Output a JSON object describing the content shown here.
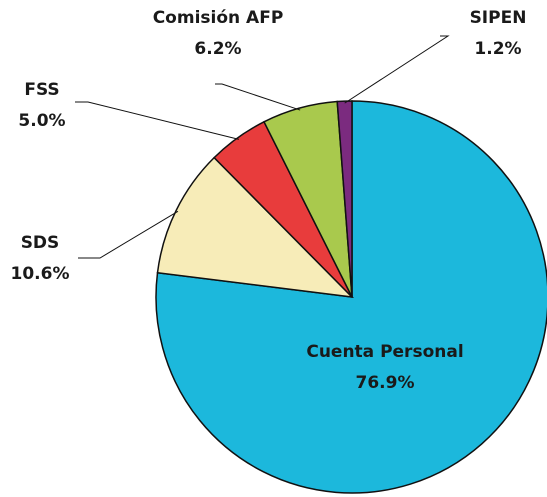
{
  "chart_data": {
    "type": "pie",
    "categories": [
      "Cuenta Personal",
      "SDS",
      "FSS",
      "Comisión AFP",
      "SIPEN"
    ],
    "values": [
      76.9,
      10.6,
      5.0,
      6.2,
      1.2
    ],
    "value_labels": [
      "76.9%",
      "10.6%",
      "5.0%",
      "6.2%",
      "1.2%"
    ],
    "colors": [
      "#1cb8dc",
      "#f7ecb8",
      "#e83c3c",
      "#a9c94d",
      "#7b2b7f"
    ]
  }
}
